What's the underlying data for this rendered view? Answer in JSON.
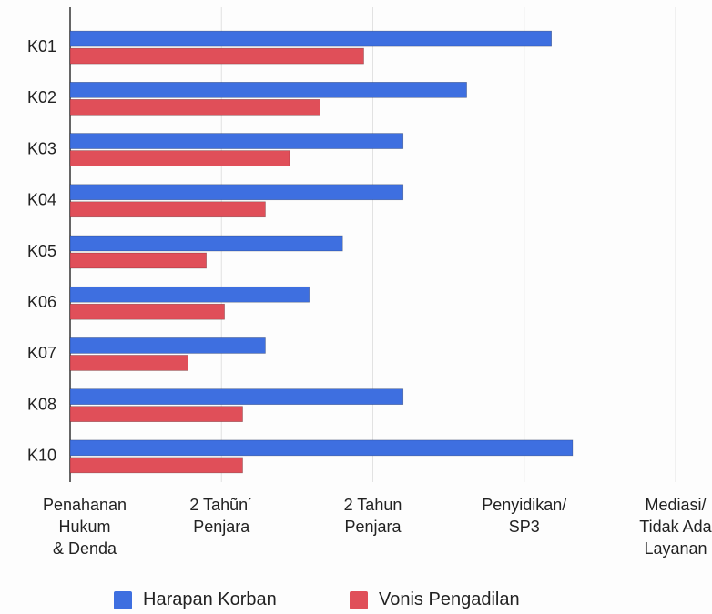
{
  "chart_data": {
    "type": "bar",
    "orientation": "horizontal",
    "categories": [
      "K01",
      "K02",
      "K03",
      "K04",
      "K05",
      "K06",
      "K07",
      "K08",
      "K10"
    ],
    "series": [
      {
        "name": "Harapan Korban",
        "color": "#3e6fe0",
        "values": [
          3.18,
          2.62,
          2.2,
          2.2,
          1.8,
          1.58,
          1.29,
          2.2,
          3.32
        ]
      },
      {
        "name": "Vonis Pengadilan",
        "color": "#e04f59",
        "values": [
          1.94,
          1.65,
          1.45,
          1.29,
          0.9,
          1.02,
          0.78,
          1.14,
          1.14
        ]
      }
    ],
    "xlim": [
      0,
      4
    ],
    "xticks": [
      {
        "value": 0,
        "label": "Penahanan\nHukum\n& Denda"
      },
      {
        "value": 1,
        "label": "2 Tahũn´\nPenjara"
      },
      {
        "value": 2,
        "label": "2 Tahun\nPenjara"
      },
      {
        "value": 3,
        "label": "Penyidikan/\nSP3"
      },
      {
        "value": 4,
        "label": "Mediasi/\nTidak Ada\nLayanan"
      }
    ],
    "grid": true
  }
}
